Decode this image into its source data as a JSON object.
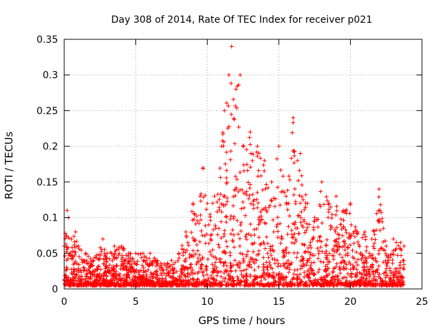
{
  "chart_data": {
    "type": "scatter",
    "title": "Day 308 of 2014, Rate Of TEC Index for receiver p021",
    "xlabel": "GPS time / hours",
    "ylabel": "ROTI / TECUs",
    "xlim": [
      0,
      25
    ],
    "ylim": [
      0,
      0.35
    ],
    "xticks": [
      0,
      5,
      10,
      15,
      20,
      25
    ],
    "xtick_labels": [
      "0",
      "5",
      "10",
      "15",
      "20",
      "25"
    ],
    "yticks": [
      0,
      0.05,
      0.1,
      0.15,
      0.2,
      0.25,
      0.3,
      0.35
    ],
    "ytick_labels": [
      "0",
      "0.05",
      "0.1",
      "0.15",
      "0.2",
      "0.25",
      "0.3",
      "0.35"
    ],
    "grid": true,
    "marker": "+",
    "color": "#ff0000",
    "x_data_range": [
      0,
      23.75
    ],
    "series": [
      {
        "name": "ROTI",
        "envelope": [
          [
            0.0,
            0.06
          ],
          [
            0.2,
            0.11
          ],
          [
            0.3,
            0.1
          ],
          [
            0.5,
            0.07
          ],
          [
            0.8,
            0.08
          ],
          [
            1.0,
            0.06
          ],
          [
            1.5,
            0.05
          ],
          [
            2.0,
            0.04
          ],
          [
            2.7,
            0.07
          ],
          [
            3.0,
            0.05
          ],
          [
            3.5,
            0.06
          ],
          [
            4.0,
            0.06
          ],
          [
            4.5,
            0.05
          ],
          [
            5.0,
            0.05
          ],
          [
            5.5,
            0.05
          ],
          [
            6.0,
            0.05
          ],
          [
            6.5,
            0.04
          ],
          [
            7.0,
            0.035
          ],
          [
            7.5,
            0.04
          ],
          [
            8.0,
            0.05
          ],
          [
            8.5,
            0.08
          ],
          [
            9.0,
            0.12
          ],
          [
            9.5,
            0.13
          ],
          [
            9.7,
            0.17
          ],
          [
            10.0,
            0.12
          ],
          [
            10.5,
            0.13
          ],
          [
            11.0,
            0.2
          ],
          [
            11.2,
            0.25
          ],
          [
            11.5,
            0.3
          ],
          [
            11.7,
            0.34
          ],
          [
            12.0,
            0.28
          ],
          [
            12.3,
            0.3
          ],
          [
            12.5,
            0.2
          ],
          [
            13.0,
            0.22
          ],
          [
            13.5,
            0.2
          ],
          [
            14.0,
            0.18
          ],
          [
            14.5,
            0.15
          ],
          [
            15.0,
            0.2
          ],
          [
            15.5,
            0.13
          ],
          [
            16.0,
            0.24
          ],
          [
            16.3,
            0.18
          ],
          [
            16.5,
            0.19
          ],
          [
            17.0,
            0.12
          ],
          [
            17.5,
            0.1
          ],
          [
            18.0,
            0.15
          ],
          [
            18.5,
            0.12
          ],
          [
            19.0,
            0.13
          ],
          [
            19.5,
            0.11
          ],
          [
            20.0,
            0.12
          ],
          [
            20.5,
            0.08
          ],
          [
            21.0,
            0.08
          ],
          [
            21.5,
            0.07
          ],
          [
            22.0,
            0.14
          ],
          [
            22.5,
            0.06
          ],
          [
            23.0,
            0.07
          ],
          [
            23.5,
            0.065
          ],
          [
            23.75,
            0.06
          ]
        ],
        "floor": 0.005
      }
    ]
  }
}
